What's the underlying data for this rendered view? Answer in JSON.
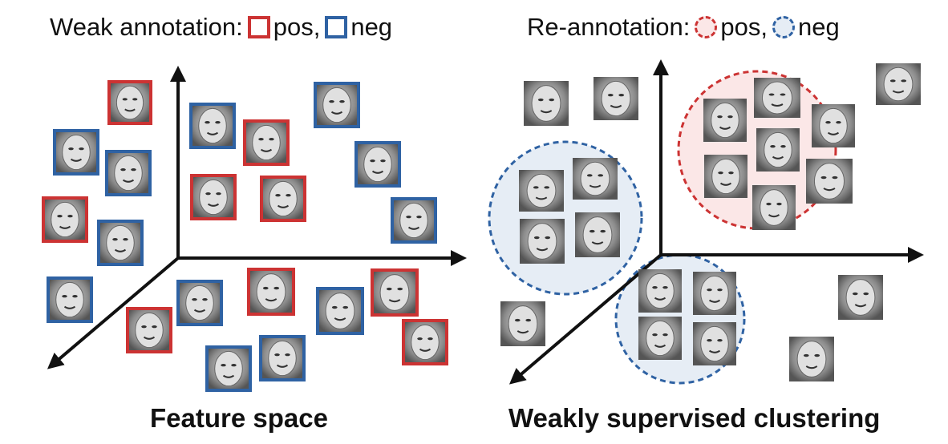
{
  "left_panel": {
    "legend": {
      "title": "Weak annotation:",
      "pos": "pos,",
      "neg": "neg"
    },
    "caption": "Feature space"
  },
  "right_panel": {
    "legend": {
      "title": "Re-annotation:",
      "pos": "pos,",
      "neg": "neg"
    },
    "caption": "Weakly supervised clustering"
  },
  "colors": {
    "pos": "#cc3333",
    "neg": "#2f62a3",
    "pos_fill": "#fbe7e7",
    "neg_fill": "#e6edf5",
    "axis": "#111111"
  }
}
